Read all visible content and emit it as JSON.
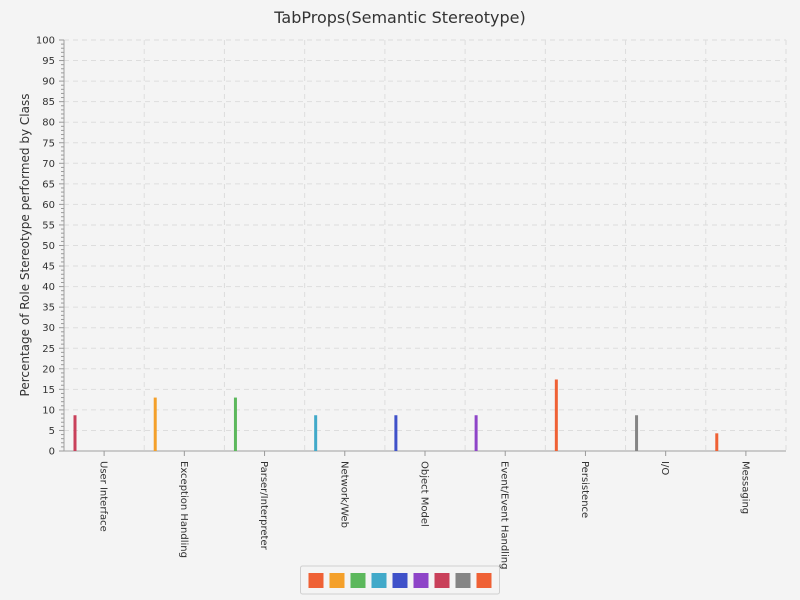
{
  "chart_data": {
    "type": "bar",
    "title": "TabProps(Semantic Stereotype)",
    "xlabel": "",
    "ylabel": "Percentage of Role Stereotype performed by Class",
    "ylim": [
      0,
      100
    ],
    "ytick_step": 5,
    "grid": true,
    "legend_position": "bottom-center",
    "categories": [
      "User Interface",
      "Exception Handling",
      "Parser/Interpreter",
      "Network/Web",
      "Object Model",
      "Event/Event Handling",
      "Persistence",
      "I/O",
      "Messaging"
    ],
    "values": [
      8.7,
      13.0,
      13.0,
      8.7,
      8.7,
      8.7,
      17.4,
      8.7,
      4.3
    ],
    "bar_colors": [
      "#c9405a",
      "#f4a02a",
      "#5cb85c",
      "#41a9c9",
      "#3f51c9",
      "#8e44c8",
      "#ef6135",
      "#858585",
      "#ef6135"
    ],
    "legend_colors": [
      "#ef6135",
      "#f4a02a",
      "#5cb85c",
      "#41a9c9",
      "#3f51c9",
      "#8e44c8",
      "#c9405a",
      "#858585",
      "#ef6135"
    ]
  }
}
